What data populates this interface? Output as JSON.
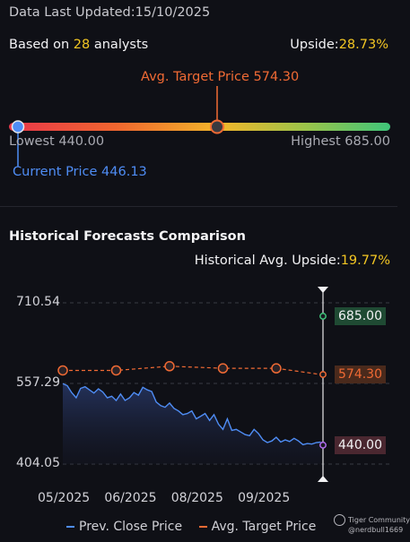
{
  "header": {
    "updated_label": "Data Last Updated:",
    "updated_value": "15/10/2025",
    "based_prefix": "Based on ",
    "analyst_count": "28",
    "based_suffix": " analysts",
    "upside_label": "Upside:",
    "upside_value": "28.73%"
  },
  "range": {
    "avg_target_label": "Avg. Target Price 574.30",
    "lowest_label": "Lowest 440.00",
    "highest_label": "Highest 685.00",
    "current_label": "Current Price 446.13",
    "low": 440.0,
    "high": 685.0,
    "current": 446.13,
    "avg_target": 574.3
  },
  "historical": {
    "title": "Historical Forecasts Comparison",
    "upside_label": "Historical Avg. Upside:",
    "upside_value": "19.77%"
  },
  "colors": {
    "price_line": "#4f8df5",
    "target_line": "#f06a34",
    "high_badge_bg": "#1f4a33",
    "avg_badge_bg": "#4a2a1c",
    "low_badge_bg": "#4a2730"
  },
  "chart_data": {
    "type": "line",
    "y_ticks": [
      "710.54",
      "557.29",
      "404.05"
    ],
    "ylim": [
      404.05,
      710.54
    ],
    "x_ticks": [
      "05/2025",
      "06/2025",
      "08/2025",
      "09/2025"
    ],
    "x_tick_positions": [
      0,
      30,
      60,
      90
    ],
    "x_range": [
      0,
      117
    ],
    "series": [
      {
        "name": "Prev. Close Price",
        "x": [
          0,
          2,
          4,
          6,
          8,
          10,
          12,
          14,
          16,
          18,
          20,
          22,
          24,
          26,
          28,
          30,
          32,
          34,
          36,
          38,
          40,
          42,
          44,
          46,
          48,
          50,
          52,
          54,
          56,
          58,
          60,
          62,
          64,
          66,
          68,
          70,
          72,
          74,
          76,
          78,
          80,
          82,
          84,
          86,
          88,
          90,
          92,
          94,
          96,
          98,
          100,
          102,
          104,
          106,
          108,
          110,
          112,
          114,
          116
        ],
        "values": [
          557,
          553,
          540,
          530,
          548,
          551,
          545,
          539,
          547,
          541,
          530,
          533,
          525,
          537,
          525,
          530,
          540,
          535,
          550,
          545,
          542,
          522,
          515,
          512,
          520,
          510,
          505,
          498,
          500,
          505,
          490,
          495,
          500,
          487,
          498,
          480,
          470,
          490,
          468,
          470,
          465,
          460,
          458,
          470,
          462,
          450,
          445,
          448,
          455,
          446,
          450,
          447,
          453,
          448,
          441,
          443,
          442,
          445,
          446
        ]
      },
      {
        "name": "Avg. Target Price",
        "x": [
          0,
          24,
          48,
          72,
          96,
          116
        ],
        "values": [
          582,
          582,
          590,
          586,
          586,
          574.3
        ]
      }
    ],
    "forecast_markers": [
      {
        "label": "685.00",
        "value": 685.0
      },
      {
        "label": "574.30",
        "value": 574.3
      },
      {
        "label": "440.00",
        "value": 440.0
      }
    ],
    "legend": [
      "Prev. Close Price",
      "Avg. Target Price"
    ],
    "legend_position": "bottom",
    "grid": true
  },
  "watermark": {
    "line1": "Tiger Community",
    "line2": "@nerdbull1669"
  }
}
